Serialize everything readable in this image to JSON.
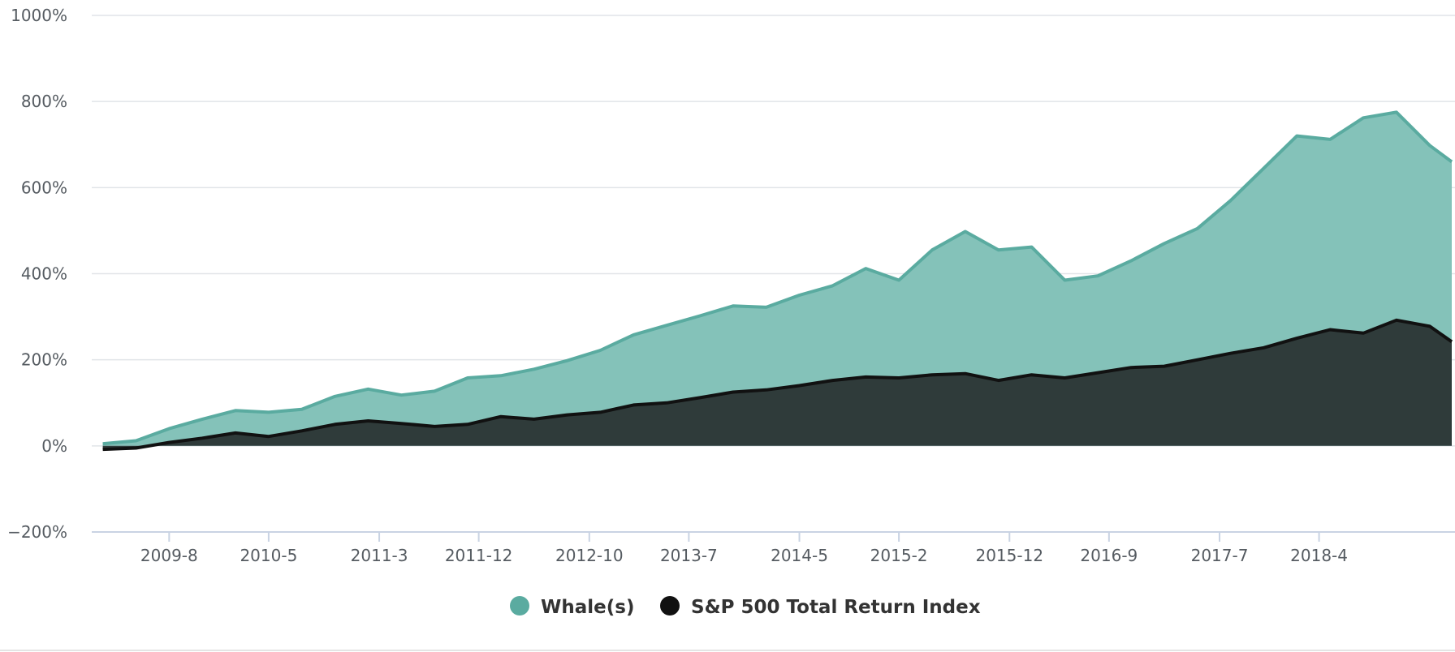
{
  "chart_data": {
    "type": "area",
    "title": "",
    "xlabel": "",
    "ylabel": "",
    "ylim": [
      -200,
      1000
    ],
    "y_ticks": [
      1000,
      800,
      600,
      400,
      200,
      0,
      -200
    ],
    "y_tick_labels": [
      "1000%",
      "800%",
      "600%",
      "400%",
      "200%",
      "0%",
      "−200%"
    ],
    "x_tick_labels": [
      "2009-8",
      "2010-5",
      "2011-3",
      "2011-12",
      "2012-10",
      "2013-7",
      "2014-5",
      "2015-2",
      "2015-12",
      "2016-9",
      "2017-7",
      "2018-4"
    ],
    "x_tick_dates": [
      "2009-08",
      "2010-05",
      "2011-03",
      "2011-12",
      "2012-10",
      "2013-07",
      "2014-05",
      "2015-02",
      "2015-12",
      "2016-09",
      "2017-07",
      "2018-04"
    ],
    "x_range": [
      "2009-01",
      "2019-04"
    ],
    "grid": "horizontal",
    "legend_position": "bottom-center",
    "series": [
      {
        "name": "Whale(s)",
        "color": "#5aaba0",
        "fill": "#84c2b9",
        "x": [
          "2009-02",
          "2009-05",
          "2009-08",
          "2009-11",
          "2010-02",
          "2010-05",
          "2010-08",
          "2010-11",
          "2011-02",
          "2011-05",
          "2011-08",
          "2011-11",
          "2012-02",
          "2012-05",
          "2012-08",
          "2012-11",
          "2013-02",
          "2013-05",
          "2013-08",
          "2013-11",
          "2014-02",
          "2014-05",
          "2014-08",
          "2014-11",
          "2015-02",
          "2015-05",
          "2015-08",
          "2015-11",
          "2016-02",
          "2016-05",
          "2016-08",
          "2016-11",
          "2017-02",
          "2017-05",
          "2017-08",
          "2017-11",
          "2018-02",
          "2018-05",
          "2018-08",
          "2018-11",
          "2019-02",
          "2019-04"
        ],
        "values": [
          5,
          12,
          40,
          62,
          82,
          78,
          85,
          115,
          132,
          118,
          127,
          158,
          163,
          178,
          198,
          222,
          258,
          280,
          302,
          325,
          322,
          350,
          372,
          412,
          385,
          455,
          498,
          455,
          462,
          385,
          395,
          430,
          470,
          505,
          570,
          645,
          720,
          712,
          762,
          775,
          698,
          660
        ]
      },
      {
        "name": "S&P 500 Total Return Index",
        "color": "#111111",
        "fill": "#2f3b3a",
        "x": [
          "2009-02",
          "2009-05",
          "2009-08",
          "2009-11",
          "2010-02",
          "2010-05",
          "2010-08",
          "2010-11",
          "2011-02",
          "2011-05",
          "2011-08",
          "2011-11",
          "2012-02",
          "2012-05",
          "2012-08",
          "2012-11",
          "2013-02",
          "2013-05",
          "2013-08",
          "2013-11",
          "2014-02",
          "2014-05",
          "2014-08",
          "2014-11",
          "2015-02",
          "2015-05",
          "2015-08",
          "2015-11",
          "2016-02",
          "2016-05",
          "2016-08",
          "2016-11",
          "2017-02",
          "2017-05",
          "2017-08",
          "2017-11",
          "2018-02",
          "2018-05",
          "2018-08",
          "2018-11",
          "2019-02",
          "2019-04"
        ],
        "values": [
          -8,
          -5,
          8,
          18,
          30,
          22,
          35,
          50,
          58,
          52,
          45,
          50,
          68,
          62,
          72,
          78,
          95,
          100,
          112,
          125,
          130,
          140,
          152,
          160,
          158,
          165,
          168,
          152,
          165,
          158,
          170,
          182,
          185,
          200,
          215,
          228,
          250,
          270,
          262,
          292,
          278,
          242
        ]
      }
    ]
  }
}
